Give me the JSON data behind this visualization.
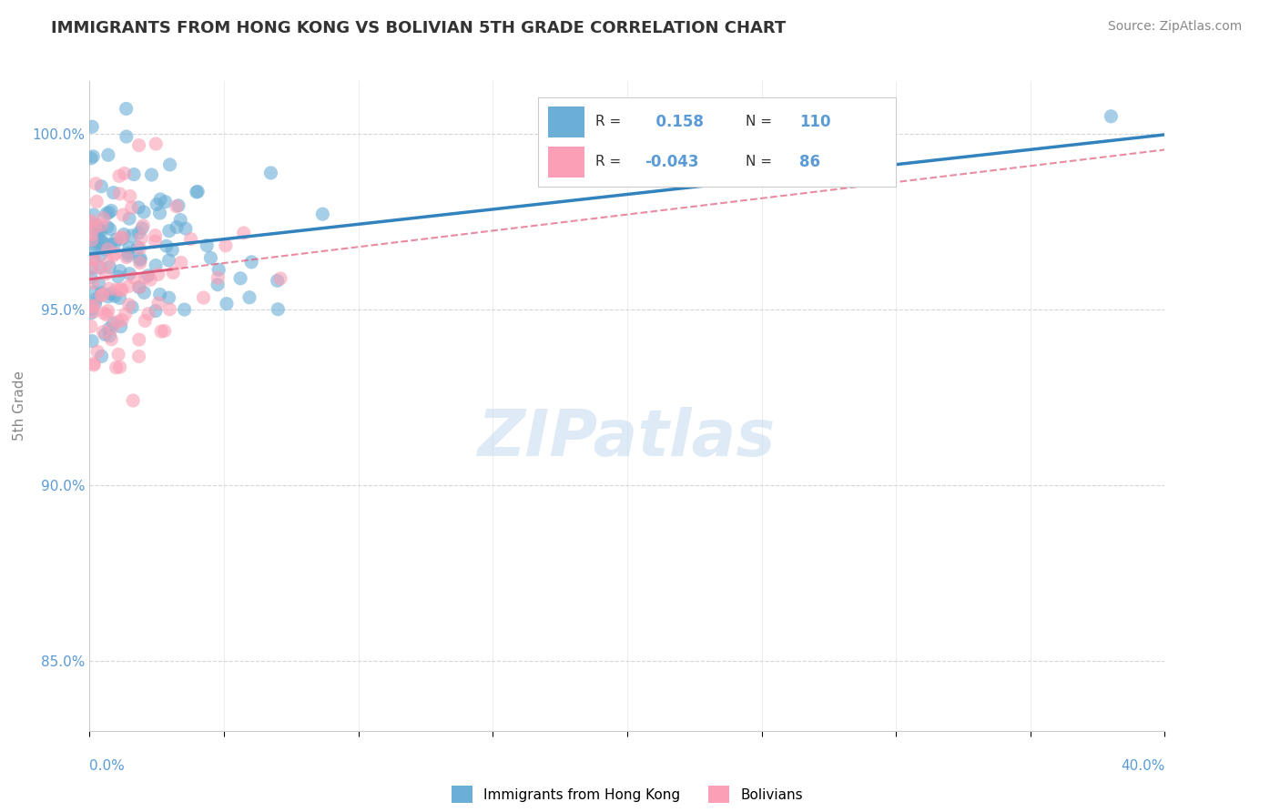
{
  "title": "IMMIGRANTS FROM HONG KONG VS BOLIVIAN 5TH GRADE CORRELATION CHART",
  "source": "Source: ZipAtlas.com",
  "ylabel": "5th Grade",
  "xlim": [
    0.0,
    40.0
  ],
  "ylim": [
    83.0,
    101.5
  ],
  "yticks": [
    85.0,
    90.0,
    95.0,
    100.0
  ],
  "ytick_labels": [
    "85.0%",
    "90.0%",
    "95.0%",
    "100.0%"
  ],
  "legend_blue_label": "Immigrants from Hong Kong",
  "legend_pink_label": "Bolivians",
  "R_blue": 0.158,
  "N_blue": 110,
  "R_pink": -0.043,
  "N_pink": 86,
  "background_color": "#ffffff",
  "blue_color": "#6baed6",
  "pink_color": "#fa9fb5",
  "blue_line_color": "#3182bd",
  "pink_line_color": "#e05a7a",
  "grid_color": "#cccccc",
  "title_color": "#333333",
  "axis_label_color": "#5b9bd5",
  "watermark_color": "#c8ddf0"
}
